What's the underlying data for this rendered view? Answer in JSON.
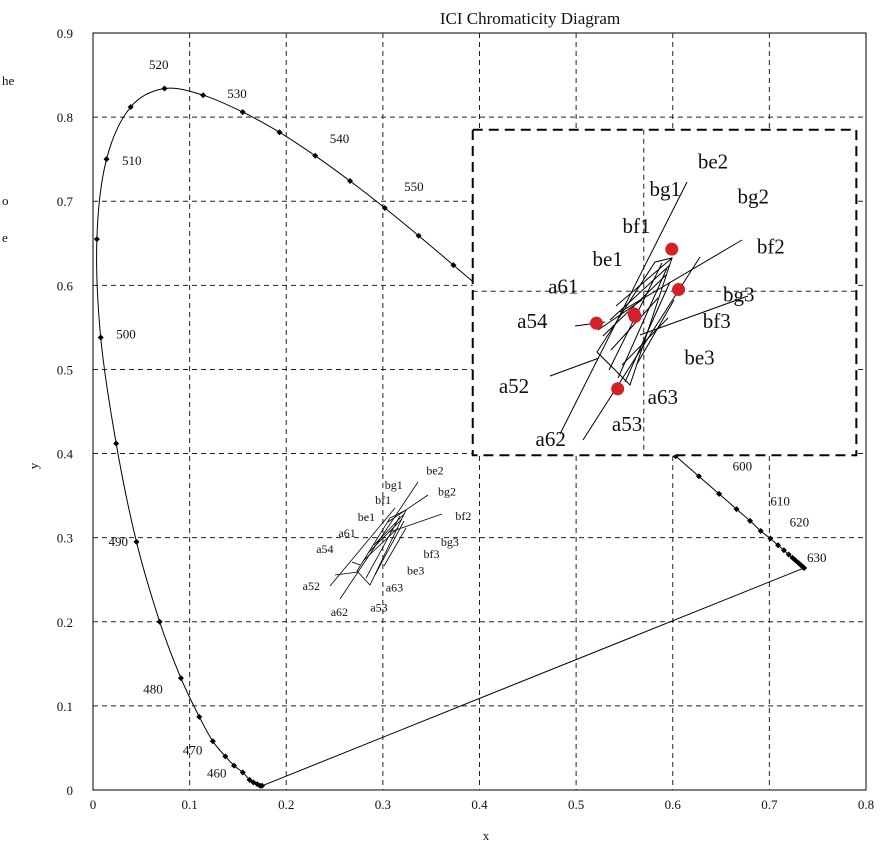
{
  "page": {
    "left_edge_text": [
      "he",
      "o",
      "e"
    ]
  },
  "chart_data": {
    "type": "scatter",
    "title": "ICI Chromaticity Diagram",
    "xlabel": "x",
    "ylabel": "y",
    "xlim": [
      0,
      0.8
    ],
    "ylim": [
      0,
      0.9
    ],
    "xticks": [
      "0",
      "0.1",
      "0.2",
      "0.3",
      "0.4",
      "0.5",
      "0.6",
      "0.7",
      "0.8"
    ],
    "yticks": [
      "0",
      "0.1",
      "0.2",
      "0.3",
      "0.4",
      "0.5",
      "0.6",
      "0.7",
      "0.8",
      "0.9"
    ],
    "grid": true,
    "locus": [
      [
        0.175,
        0.005
      ],
      [
        0.173,
        0.005
      ],
      [
        0.17,
        0.007
      ],
      [
        0.166,
        0.009
      ],
      [
        0.162,
        0.012
      ],
      [
        0.155,
        0.021
      ],
      [
        0.146,
        0.029
      ],
      [
        0.137,
        0.04
      ],
      [
        0.124,
        0.058
      ],
      [
        0.11,
        0.087
      ],
      [
        0.091,
        0.133
      ],
      [
        0.069,
        0.2
      ],
      [
        0.045,
        0.295
      ],
      [
        0.024,
        0.412
      ],
      [
        0.008,
        0.538
      ],
      [
        0.004,
        0.655
      ],
      [
        0.014,
        0.75
      ],
      [
        0.039,
        0.812
      ],
      [
        0.074,
        0.834
      ],
      [
        0.114,
        0.826
      ],
      [
        0.155,
        0.806
      ],
      [
        0.193,
        0.782
      ],
      [
        0.23,
        0.754
      ],
      [
        0.266,
        0.724
      ],
      [
        0.302,
        0.692
      ],
      [
        0.337,
        0.659
      ],
      [
        0.373,
        0.624
      ],
      [
        0.409,
        0.589
      ],
      [
        0.444,
        0.554
      ],
      [
        0.479,
        0.52
      ],
      [
        0.512,
        0.487
      ],
      [
        0.545,
        0.454
      ],
      [
        0.575,
        0.424
      ],
      [
        0.603,
        0.397
      ],
      [
        0.627,
        0.373
      ],
      [
        0.648,
        0.352
      ],
      [
        0.666,
        0.334
      ],
      [
        0.68,
        0.32
      ],
      [
        0.691,
        0.308
      ],
      [
        0.701,
        0.299
      ],
      [
        0.709,
        0.291
      ],
      [
        0.715,
        0.285
      ],
      [
        0.72,
        0.28
      ],
      [
        0.724,
        0.276
      ],
      [
        0.727,
        0.273
      ],
      [
        0.73,
        0.27
      ],
      [
        0.732,
        0.268
      ],
      [
        0.734,
        0.266
      ],
      [
        0.735,
        0.265
      ],
      [
        0.736,
        0.264
      ]
    ],
    "purple_line": [
      [
        0.175,
        0.005
      ],
      [
        0.736,
        0.264
      ]
    ],
    "wavelength_labels": [
      {
        "text": "460",
        "x": 0.118,
        "y": 0.015
      },
      {
        "text": "470",
        "x": 0.093,
        "y": 0.042
      },
      {
        "text": "480",
        "x": 0.052,
        "y": 0.115
      },
      {
        "text": "490",
        "x": 0.016,
        "y": 0.29
      },
      {
        "text": "500",
        "x": 0.024,
        "y": 0.537
      },
      {
        "text": "510",
        "x": 0.03,
        "y": 0.743
      },
      {
        "text": "520",
        "x": 0.058,
        "y": 0.857
      },
      {
        "text": "530",
        "x": 0.139,
        "y": 0.823
      },
      {
        "text": "540",
        "x": 0.245,
        "y": 0.769
      },
      {
        "text": "550",
        "x": 0.322,
        "y": 0.712
      },
      {
        "text": "600",
        "x": 0.662,
        "y": 0.38
      },
      {
        "text": "610",
        "x": 0.701,
        "y": 0.338
      },
      {
        "text": "620",
        "x": 0.721,
        "y": 0.313
      },
      {
        "text": "630",
        "x": 0.739,
        "y": 0.271
      }
    ],
    "inset_labels": [
      {
        "text": "be2",
        "x": 0.345,
        "y": 0.375
      },
      {
        "text": "bg1",
        "x": 0.302,
        "y": 0.358
      },
      {
        "text": "bg2",
        "x": 0.357,
        "y": 0.35
      },
      {
        "text": "bf1",
        "x": 0.292,
        "y": 0.34
      },
      {
        "text": "bf2",
        "x": 0.375,
        "y": 0.321
      },
      {
        "text": "be1",
        "x": 0.274,
        "y": 0.32
      },
      {
        "text": "a61",
        "x": 0.254,
        "y": 0.301
      },
      {
        "text": "bg3",
        "x": 0.36,
        "y": 0.29
      },
      {
        "text": "a54",
        "x": 0.231,
        "y": 0.282
      },
      {
        "text": "bf3",
        "x": 0.342,
        "y": 0.276
      },
      {
        "text": "be3",
        "x": 0.325,
        "y": 0.256
      },
      {
        "text": "a52",
        "x": 0.217,
        "y": 0.238
      },
      {
        "text": "a63",
        "x": 0.303,
        "y": 0.236
      },
      {
        "text": "a62",
        "x": 0.246,
        "y": 0.207
      },
      {
        "text": "a53",
        "x": 0.287,
        "y": 0.212
      }
    ],
    "zoom_labels": [
      {
        "text": "be2",
        "x": 0.626,
        "y": 0.739
      },
      {
        "text": "bg1",
        "x": 0.576,
        "y": 0.706
      },
      {
        "text": "bg2",
        "x": 0.667,
        "y": 0.697
      },
      {
        "text": "bf1",
        "x": 0.548,
        "y": 0.662
      },
      {
        "text": "bf2",
        "x": 0.687,
        "y": 0.638
      },
      {
        "text": "be1",
        "x": 0.517,
        "y": 0.623
      },
      {
        "text": "a61",
        "x": 0.471,
        "y": 0.59
      },
      {
        "text": "bg3",
        "x": 0.652,
        "y": 0.581
      },
      {
        "text": "a54",
        "x": 0.439,
        "y": 0.549
      },
      {
        "text": "bf3",
        "x": 0.631,
        "y": 0.549
      },
      {
        "text": "be3",
        "x": 0.612,
        "y": 0.506
      },
      {
        "text": "a52",
        "x": 0.42,
        "y": 0.472
      },
      {
        "text": "a63",
        "x": 0.574,
        "y": 0.459
      },
      {
        "text": "a62",
        "x": 0.458,
        "y": 0.409
      },
      {
        "text": "a53",
        "x": 0.537,
        "y": 0.427
      }
    ],
    "zoom_box": {
      "x": [
        0.393,
        0.79
      ],
      "y": [
        0.398,
        0.785
      ]
    },
    "zoom_points_red": [
      [
        0.521,
        0.555
      ],
      [
        0.599,
        0.643
      ],
      [
        0.606,
        0.595
      ],
      [
        0.543,
        0.477
      ],
      [
        0.56,
        0.566
      ],
      [
        0.561,
        0.563
      ]
    ],
    "colors": {
      "line": "#000000",
      "grid": "#222222",
      "zoom_point": "#d42027"
    }
  }
}
